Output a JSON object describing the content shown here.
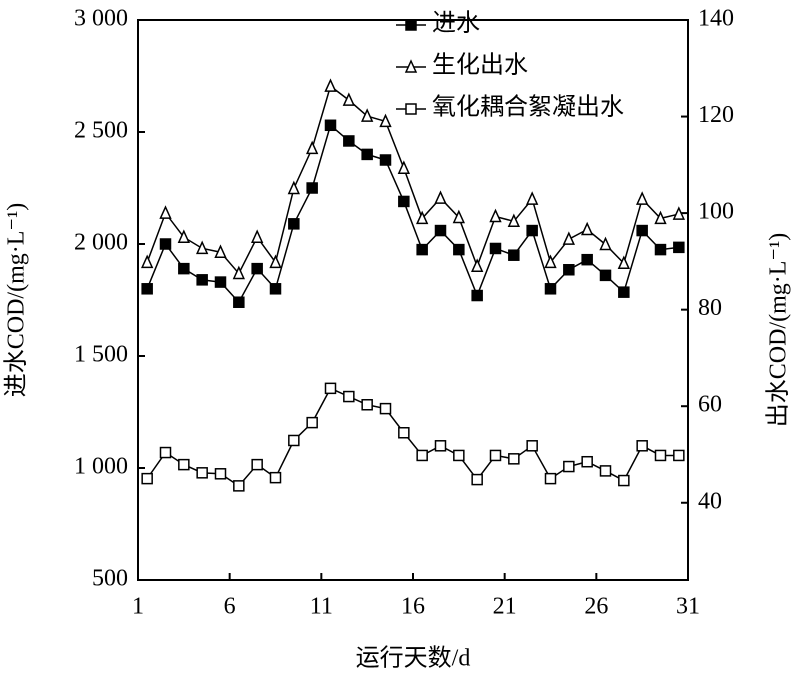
{
  "chart_data": {
    "type": "line",
    "x_label": "运行天数/d",
    "y_label": "进水COD/(mg·L⁻¹)",
    "y2_label": "出水COD/(mg·L⁻¹)",
    "x": [
      1.5,
      2.5,
      3.5,
      4.5,
      5.5,
      6.5,
      7.5,
      8.5,
      9.5,
      10.5,
      11.5,
      12.5,
      13.5,
      14.5,
      15.5,
      16.5,
      17.5,
      18.5,
      19.5,
      20.5,
      21.5,
      22.5,
      23.5,
      24.5,
      25.5,
      26.5,
      27.5,
      28.5,
      29.5,
      30.5
    ],
    "xlim": [
      1,
      31
    ],
    "xticks": [
      1,
      6,
      11,
      16,
      21,
      26,
      31
    ],
    "ylim": [
      500,
      3000
    ],
    "yticks": [
      {
        "value": 500,
        "label": "500"
      },
      {
        "value": 1000,
        "label": "1 000"
      },
      {
        "value": 1500,
        "label": "1 500"
      },
      {
        "value": 2000,
        "label": "2 000"
      },
      {
        "value": 2500,
        "label": "2 500"
      },
      {
        "value": 3000,
        "label": "3 000"
      }
    ],
    "y2lim": [
      24,
      140
    ],
    "y2ticks": [
      40,
      60,
      80,
      100,
      120,
      140
    ],
    "legend": "top-right",
    "series": [
      {
        "name": "进水",
        "color": "#000000",
        "marker": "square-filled",
        "values": [
          1800,
          2000,
          1890,
          1840,
          1830,
          1740,
          1890,
          1800,
          2090,
          2250,
          2530,
          2460,
          2400,
          2375,
          2190,
          1975,
          2060,
          1975,
          1770,
          1980,
          1950,
          2060,
          1800,
          1885,
          1930,
          1860,
          1785,
          2060,
          1975,
          1985
        ]
      },
      {
        "name": "生化出水",
        "color": "#000000",
        "marker": "triangle-open",
        "axis": "y2",
        "values": [
          89.8,
          100,
          95,
          92.7,
          91.9,
          87.5,
          95,
          89.8,
          105.1,
          113.4,
          126.3,
          123.4,
          120.1,
          119,
          109.3,
          98.9,
          103.1,
          99.1,
          89,
          99.3,
          98.3,
          102.9,
          89.8,
          94.6,
          96.6,
          93.5,
          89.6,
          102.9,
          98.9,
          99.8
        ]
      },
      {
        "name": "氧化耦合絮凝出水",
        "color": "#000000",
        "marker": "square-open",
        "axis": "y2",
        "values": [
          45,
          50.4,
          47.9,
          46.2,
          46,
          43.5,
          47.9,
          45.2,
          52.9,
          56.6,
          63.7,
          62,
          60.3,
          59.5,
          54.5,
          49.8,
          51.8,
          49.8,
          44.8,
          49.8,
          49.1,
          51.8,
          45,
          47.5,
          48.5,
          46.6,
          44.6,
          51.8,
          49.8,
          49.8
        ]
      }
    ]
  }
}
